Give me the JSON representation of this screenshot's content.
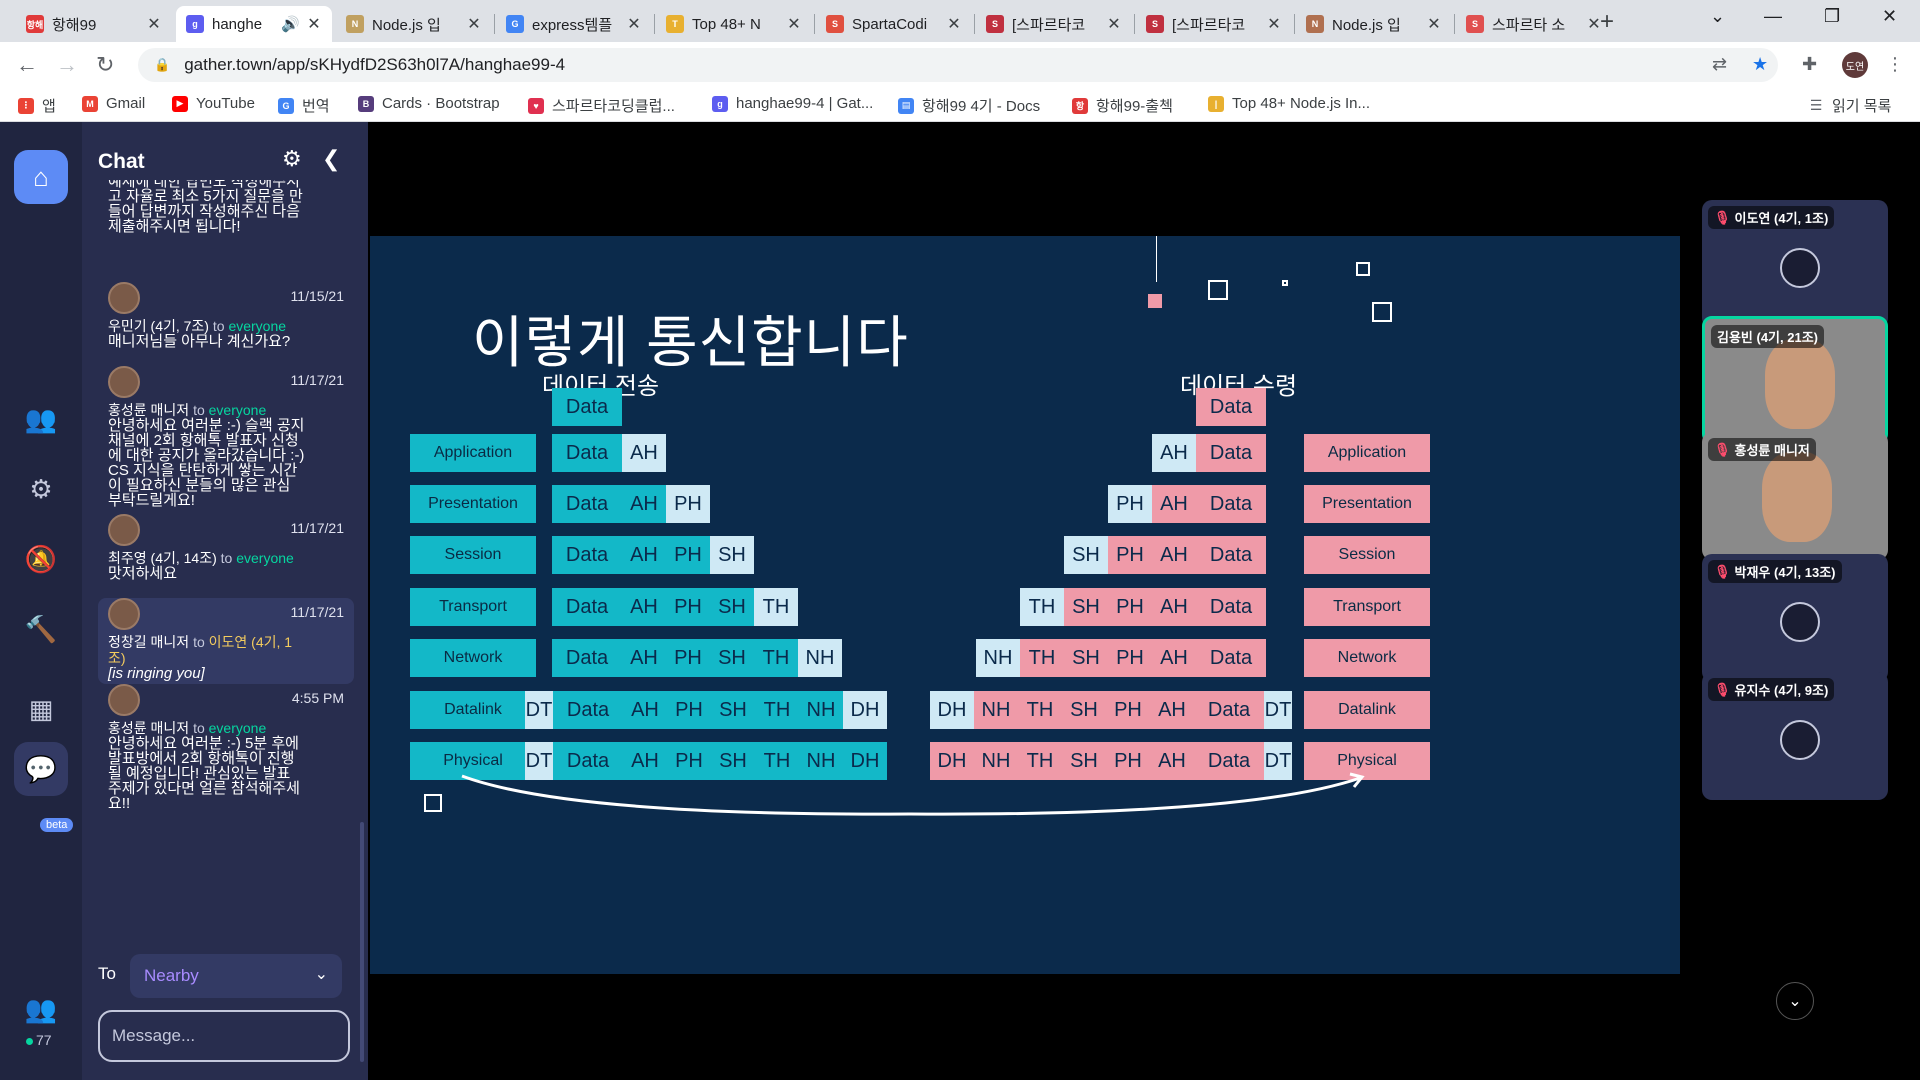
{
  "tabs": [
    {
      "title": "항해99",
      "fav_color": "#e03a3a",
      "fav": "항해"
    },
    {
      "title": "hanghe",
      "fav_color": "#5d5df0",
      "fav": "g",
      "active": true
    },
    {
      "title": "Node.js 입",
      "fav_color": "#c0a060",
      "fav": "N"
    },
    {
      "title": "express템플",
      "fav_color": "#4285f4",
      "fav": "G"
    },
    {
      "title": "Top 48+ N",
      "fav_color": "#e8b030",
      "fav": "T"
    },
    {
      "title": "SpartaCodi",
      "fav_color": "#e05040",
      "fav": "S"
    },
    {
      "title": "[스파르타코",
      "fav_color": "#c03040",
      "fav": "S"
    },
    {
      "title": "[스파르타코",
      "fav_color": "#c03040",
      "fav": "S"
    },
    {
      "title": "Node.js 입",
      "fav_color": "#b07050",
      "fav": "N"
    },
    {
      "title": "스파르타 소",
      "fav_color": "#e05050",
      "fav": "S"
    }
  ],
  "browser": {
    "url": "gather.town/app/sKHydfD2S63h0l7A/hanghae99-4",
    "profile": "도연"
  },
  "bookmarks": [
    {
      "label": "앱",
      "color": "#ea4335",
      "icon": "⋮"
    },
    {
      "label": "Gmail",
      "color": "#ea4335",
      "icon": "M"
    },
    {
      "label": "YouTube",
      "color": "#ff0000",
      "icon": "▶"
    },
    {
      "label": "번역",
      "color": "#4285f4",
      "icon": "G"
    },
    {
      "label": "Cards · Bootstrap",
      "color": "#563d7c",
      "icon": "B"
    },
    {
      "label": "스파르타코딩클럽...",
      "color": "#e03050",
      "icon": "♥"
    },
    {
      "label": "hanghae99-4 | Gat...",
      "color": "#5d5df0",
      "icon": "g"
    },
    {
      "label": "항해99 4기 - Docs",
      "color": "#4285f4",
      "icon": "▤"
    },
    {
      "label": "항해99-출첵",
      "color": "#e03a3a",
      "icon": "항"
    },
    {
      "label": "Top 48+ Node.js In...",
      "color": "#e8b030",
      "icon": "|"
    }
  ],
  "reading_list": "읽기 목록",
  "chat": {
    "title": "Chat",
    "to_label": "To",
    "to_value": "Nearby",
    "input_placeholder": "Message...",
    "messages": [
      {
        "time": "",
        "author": "",
        "target": "",
        "body": "예제에 대한 답변도 작성해주시\n고 자율로 최소 5가지 질문을 만\n들어 답변까지 작성해주신 다음\n제출해주시면 됩니다!"
      },
      {
        "time": "11/15/21",
        "author": "우민기 (4기, 7조)",
        "to": "to",
        "target": "everyone",
        "body": "매니저님들 아무나 계신가요?"
      },
      {
        "time": "11/17/21",
        "author": "홍성륜 매니저",
        "to": "to",
        "target": "everyone",
        "body": "안녕하세요 여러분 :-) 슬랙 공지\n채널에 2회 항해톡 발표자 신청\n에 대한 공지가 올라갔습니다 :-)\nCS 지식을 탄탄하게 쌓는 시간\n이 필요하신 분들의 많은 관심\n부탁드릴게요!"
      },
      {
        "time": "11/17/21",
        "author": "최주영 (4기, 14조)",
        "to": "to",
        "target": "everyone",
        "body": "맛저하세요"
      },
      {
        "time": "11/17/21",
        "author": "정창길 매니저",
        "to": "to",
        "target": "이도연 (4기, 1\n조)",
        "body": "[is ringing you]"
      },
      {
        "time": "4:55 PM",
        "author": "홍성륜 매니저",
        "to": "to",
        "target": "everyone",
        "body": "안녕하세요 여러분 :-) 5분 후에\n발표방에서 2회 항해톡이 진행\n될 예정입니다! 관심있는 발표\n주제가 있다면 얼른 참석해주세\n요!!"
      }
    ]
  },
  "rail": {
    "beta": "beta",
    "online_count": "77"
  },
  "slide": {
    "title": "이렇게 통신합니다",
    "send_heading": "데이터 전송",
    "recv_heading": "데이터 수령",
    "layers": [
      "Application",
      "Presentation",
      "Session",
      "Transport",
      "Network",
      "Datalink",
      "Physical"
    ],
    "send_rows": [
      [
        "Data"
      ],
      [
        "Data",
        "AH"
      ],
      [
        "Data",
        "AH",
        "PH"
      ],
      [
        "Data",
        "AH",
        "PH",
        "SH"
      ],
      [
        "Data",
        "AH",
        "PH",
        "SH",
        "TH"
      ],
      [
        "Data",
        "AH",
        "PH",
        "SH",
        "TH",
        "NH"
      ],
      [
        "DT",
        "Data",
        "AH",
        "PH",
        "SH",
        "TH",
        "NH",
        "DH"
      ],
      [
        "DT",
        "Data",
        "AH",
        "PH",
        "SH",
        "TH",
        "NH",
        "DH"
      ]
    ],
    "recv_rows": [
      [
        "Data"
      ],
      [
        "AH",
        "Data"
      ],
      [
        "PH",
        "AH",
        "Data"
      ],
      [
        "SH",
        "PH",
        "AH",
        "Data"
      ],
      [
        "TH",
        "SH",
        "PH",
        "AH",
        "Data"
      ],
      [
        "NH",
        "TH",
        "SH",
        "PH",
        "AH",
        "Data"
      ],
      [
        "DH",
        "NH",
        "TH",
        "SH",
        "PH",
        "AH",
        "Data",
        "DT"
      ],
      [
        "DH",
        "NH",
        "TH",
        "SH",
        "PH",
        "AH",
        "Data",
        "DT"
      ]
    ]
  },
  "participants": [
    {
      "name": "이도연 (4기, 1조)",
      "muted": true,
      "video": false
    },
    {
      "name": "김용빈 (4기, 21조)",
      "muted": false,
      "video": true
    },
    {
      "name": "홍성륜 매니저",
      "muted": true,
      "video": true
    },
    {
      "name": "박재우 (4기, 13조)",
      "muted": true,
      "video": false
    },
    {
      "name": "유지수 (4기, 9조)",
      "muted": true,
      "video": false
    }
  ]
}
